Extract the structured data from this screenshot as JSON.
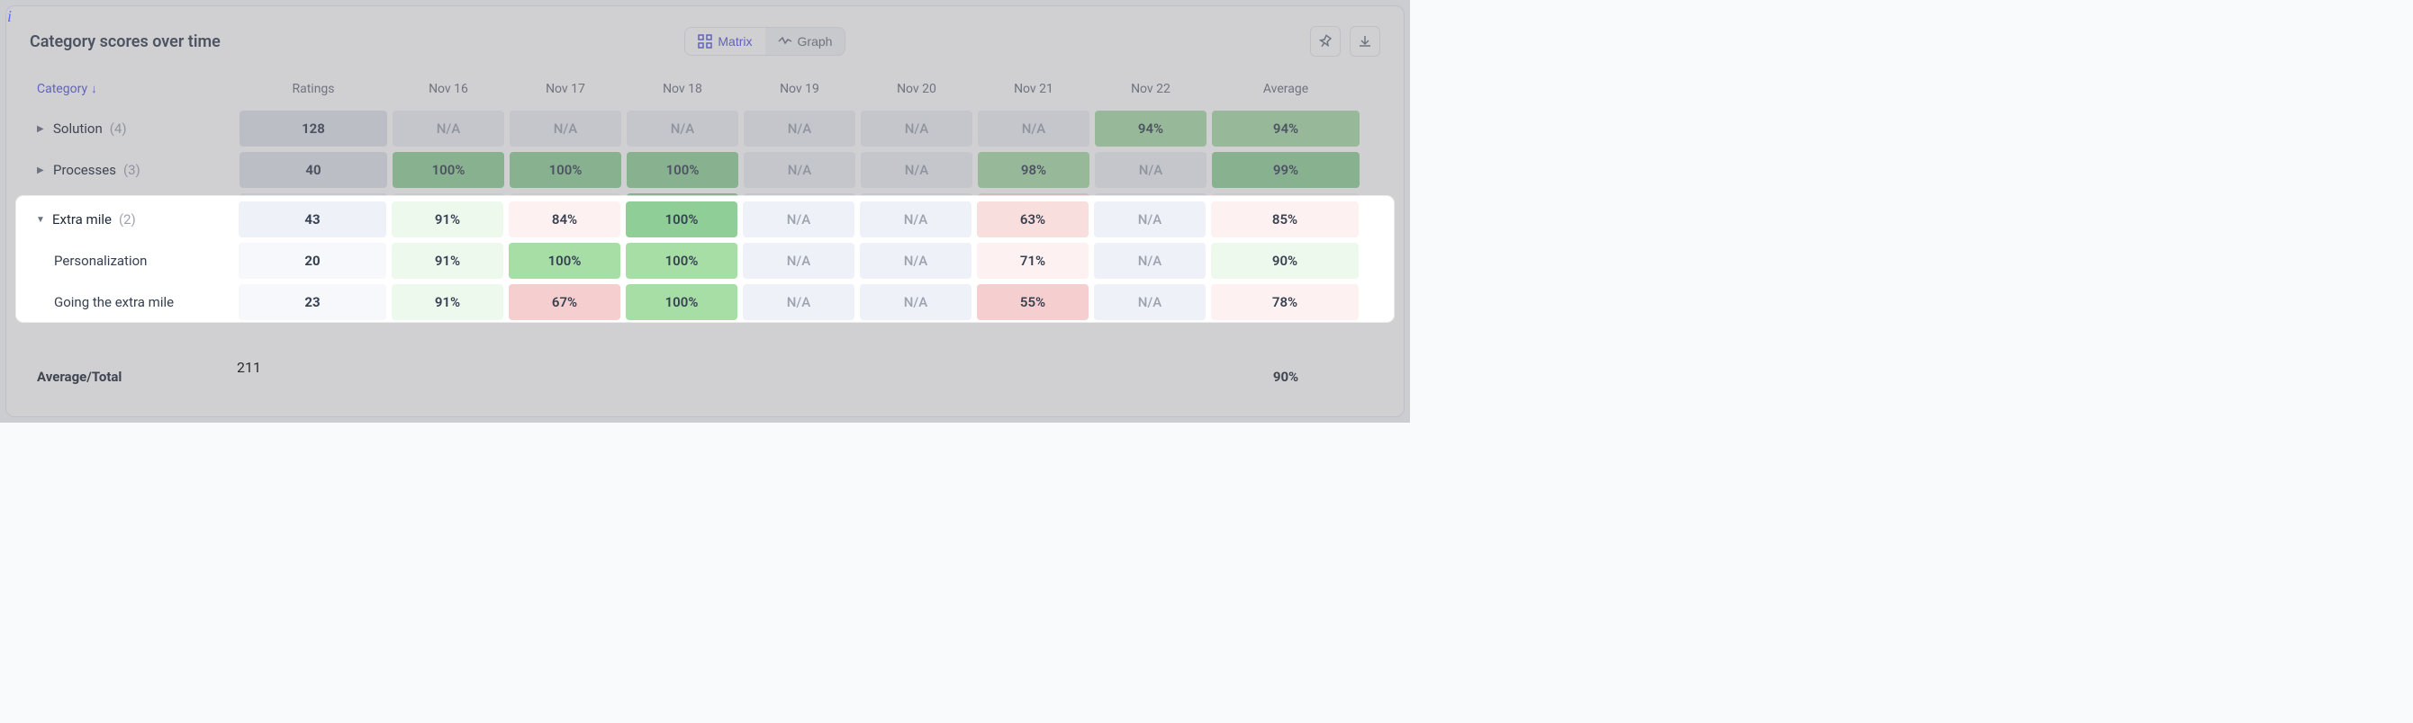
{
  "info_icon": "i",
  "title": "Category scores over time",
  "toggle": {
    "matrix": "Matrix",
    "graph": "Graph",
    "active": "matrix"
  },
  "columns": {
    "category": "Category",
    "ratings": "Ratings",
    "dates": [
      "Nov 16",
      "Nov 17",
      "Nov 18",
      "Nov 19",
      "Nov 20",
      "Nov 21",
      "Nov 22"
    ],
    "average": "Average"
  },
  "colors": {
    "na": "#edf0f5",
    "ratings_bg": "#edf0f5",
    "green_dark": "#8fcf97",
    "green_mid": "#a8dca8",
    "green_light": "#d7f0d7",
    "green_vlight": "#eef9ee",
    "red_light": "#f9dede",
    "red_vlight": "#fdf1f1",
    "blue_vlight": "#eef1f8",
    "total_bg": "#eceefe",
    "total_fg": "#5558d6"
  },
  "rows": [
    {
      "id": "solution",
      "label": "Solution",
      "count": "(4)",
      "expanded": false,
      "ratings": "128",
      "ratings_bg": "#e1e4ea",
      "cells": [
        {
          "v": "N/A",
          "bg": "#edf0f5",
          "na": true
        },
        {
          "v": "N/A",
          "bg": "#edf0f5",
          "na": true
        },
        {
          "v": "N/A",
          "bg": "#edf0f5",
          "na": true
        },
        {
          "v": "N/A",
          "bg": "#edf0f5",
          "na": true
        },
        {
          "v": "N/A",
          "bg": "#edf0f5",
          "na": true
        },
        {
          "v": "N/A",
          "bg": "#edf0f5",
          "na": true
        },
        {
          "v": "94%",
          "bg": "#a8dca8"
        }
      ],
      "avg": {
        "v": "94%",
        "bg": "#a8dca8"
      }
    },
    {
      "id": "processes",
      "label": "Processes",
      "count": "(3)",
      "expanded": false,
      "ratings": "40",
      "ratings_bg": "#e1e4ea",
      "cells": [
        {
          "v": "100%",
          "bg": "#8fcf97"
        },
        {
          "v": "100%",
          "bg": "#8fcf97"
        },
        {
          "v": "100%",
          "bg": "#8fcf97"
        },
        {
          "v": "N/A",
          "bg": "#edf0f5",
          "na": true
        },
        {
          "v": "N/A",
          "bg": "#edf0f5",
          "na": true
        },
        {
          "v": "98%",
          "bg": "#a8dca8"
        },
        {
          "v": "N/A",
          "bg": "#edf0f5",
          "na": true
        }
      ],
      "avg": {
        "v": "99%",
        "bg": "#8fcf97"
      }
    },
    {
      "id": "extra",
      "label": "Extra mile",
      "count": "(2)",
      "expanded": true,
      "ratings": "43",
      "ratings_bg": "#eef1f8",
      "cells": [
        {
          "v": "91%",
          "bg": "#eef9ee"
        },
        {
          "v": "84%",
          "bg": "#fdf1f1"
        },
        {
          "v": "100%",
          "bg": "#8fcf97"
        },
        {
          "v": "N/A",
          "bg": "#eef1f8",
          "na": true
        },
        {
          "v": "N/A",
          "bg": "#eef1f8",
          "na": true
        },
        {
          "v": "63%",
          "bg": "#f9dede"
        },
        {
          "v": "N/A",
          "bg": "#eef1f8",
          "na": true
        }
      ],
      "avg": {
        "v": "85%",
        "bg": "#fdf1f1"
      }
    },
    {
      "id": "personalization",
      "label": "Personalization",
      "sub": true,
      "ratings": "20",
      "ratings_bg": "#f6f8fb",
      "cells": [
        {
          "v": "91%",
          "bg": "#eef9ee"
        },
        {
          "v": "100%",
          "bg": "#a6dea6"
        },
        {
          "v": "100%",
          "bg": "#a6dea6"
        },
        {
          "v": "N/A",
          "bg": "#eef1f8",
          "na": true
        },
        {
          "v": "N/A",
          "bg": "#eef1f8",
          "na": true
        },
        {
          "v": "71%",
          "bg": "#fdf1f1"
        },
        {
          "v": "N/A",
          "bg": "#eef1f8",
          "na": true
        }
      ],
      "avg": {
        "v": "90%",
        "bg": "#eef9ee"
      }
    },
    {
      "id": "going",
      "label": "Going the extra mile",
      "sub": true,
      "ratings": "23",
      "ratings_bg": "#f6f8fb",
      "cells": [
        {
          "v": "91%",
          "bg": "#eef9ee"
        },
        {
          "v": "67%",
          "bg": "#f5cfcf"
        },
        {
          "v": "100%",
          "bg": "#a6dea6"
        },
        {
          "v": "N/A",
          "bg": "#eef1f8",
          "na": true
        },
        {
          "v": "N/A",
          "bg": "#eef1f8",
          "na": true
        },
        {
          "v": "55%",
          "bg": "#f5cfcf"
        },
        {
          "v": "N/A",
          "bg": "#eef1f8",
          "na": true
        }
      ],
      "avg": {
        "v": "78%",
        "bg": "#fdf1f1"
      }
    }
  ],
  "footer": {
    "label": "Average/Total",
    "total": "211",
    "avg": "90%"
  }
}
